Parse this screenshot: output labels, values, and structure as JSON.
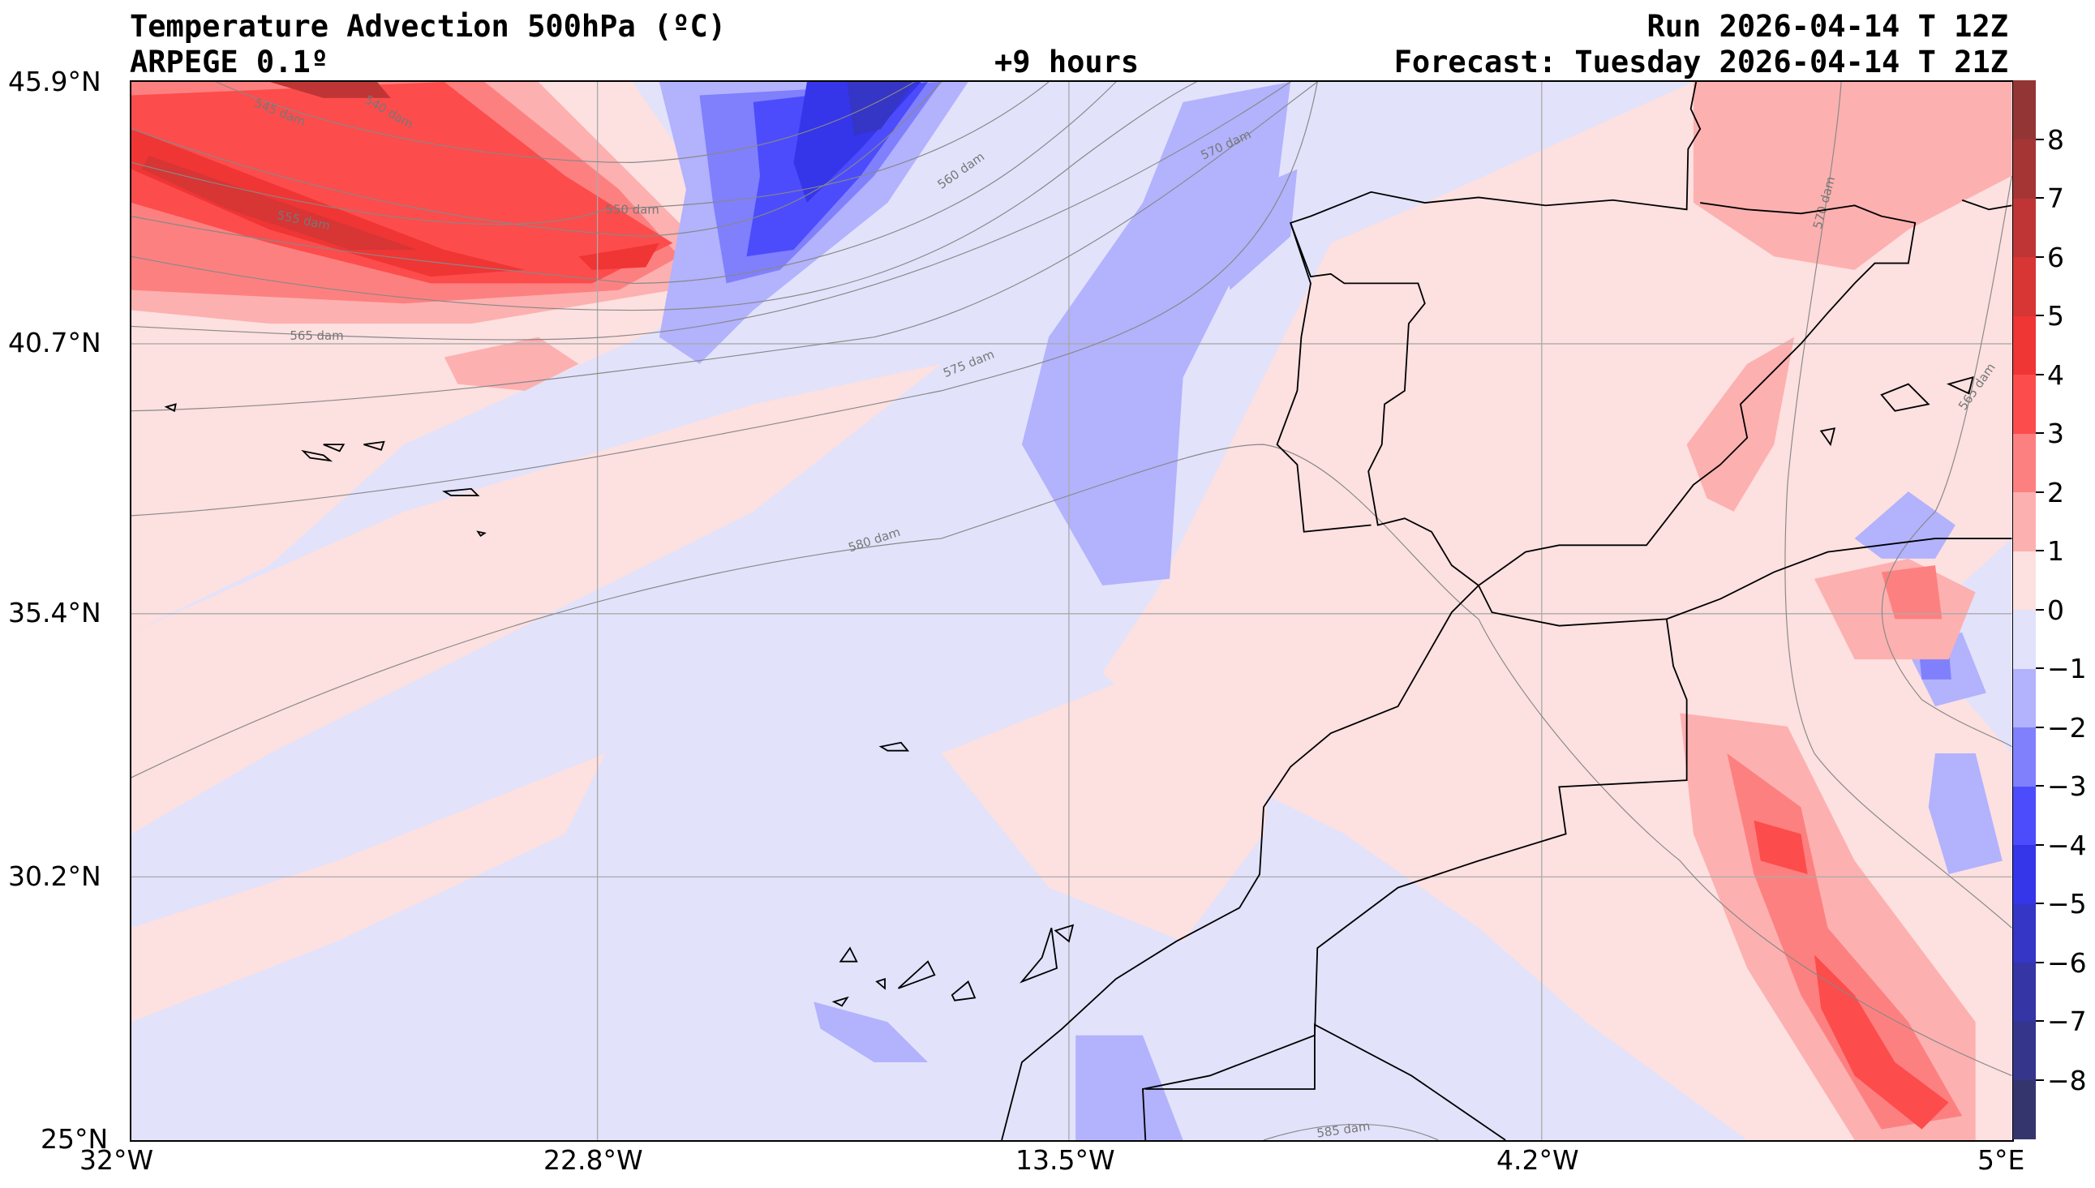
{
  "header": {
    "title": "Temperature Advection  500hPa (ºC)",
    "model": "ARPEGE 0.1º",
    "lead": "+9 hours",
    "run": "Run 2026-04-14 T 12Z",
    "forecast": "Forecast: Tuesday 2026-04-14 T 21Z"
  },
  "chart_data": {
    "type": "heatmap",
    "title": "Temperature Advection 500hPa (ºC)",
    "variable": "500hPa temperature advection (ºC) with geopotential height contours (dam)",
    "xlim": [
      -32,
      5
    ],
    "ylim": [
      25,
      45.9
    ],
    "x_ticks": [
      "32°W",
      "22.8°W",
      "13.5°W",
      "4.2°W",
      "5°E"
    ],
    "y_ticks": [
      "45.9°N",
      "40.7°N",
      "35.4°N",
      "30.2°N",
      "25°N"
    ],
    "colorbar": {
      "levels": [
        -9,
        -8,
        -7,
        -6,
        -5,
        -4,
        -3,
        -2,
        -1,
        0,
        1,
        2,
        3,
        4,
        5,
        6,
        7,
        8,
        9
      ],
      "tick_labels": [
        "8",
        "7",
        "6",
        "5",
        "4",
        "3",
        "2",
        "1",
        "0",
        "−1",
        "−2",
        "−3",
        "−4",
        "−5",
        "−6",
        "−7",
        "−8"
      ],
      "colors": [
        "#35356e",
        "#35358c",
        "#3535a6",
        "#3535c6",
        "#3535ea",
        "#4c4cfd",
        "#8080fd",
        "#b2b2fd",
        "#e2e2fb",
        "#fde0e0",
        "#fdb0b0",
        "#fd8080",
        "#fd4c4c",
        "#f03535",
        "#d83535",
        "#bf3535",
        "#a53535",
        "#933535"
      ]
    },
    "height_contours": [
      "540 dam",
      "545 dam",
      "550 dam",
      "555 dam",
      "560 dam",
      "565 dam",
      "570 dam",
      "575 dam",
      "580 dam",
      "585 dam",
      "570 dam",
      "565 dam"
    ]
  }
}
